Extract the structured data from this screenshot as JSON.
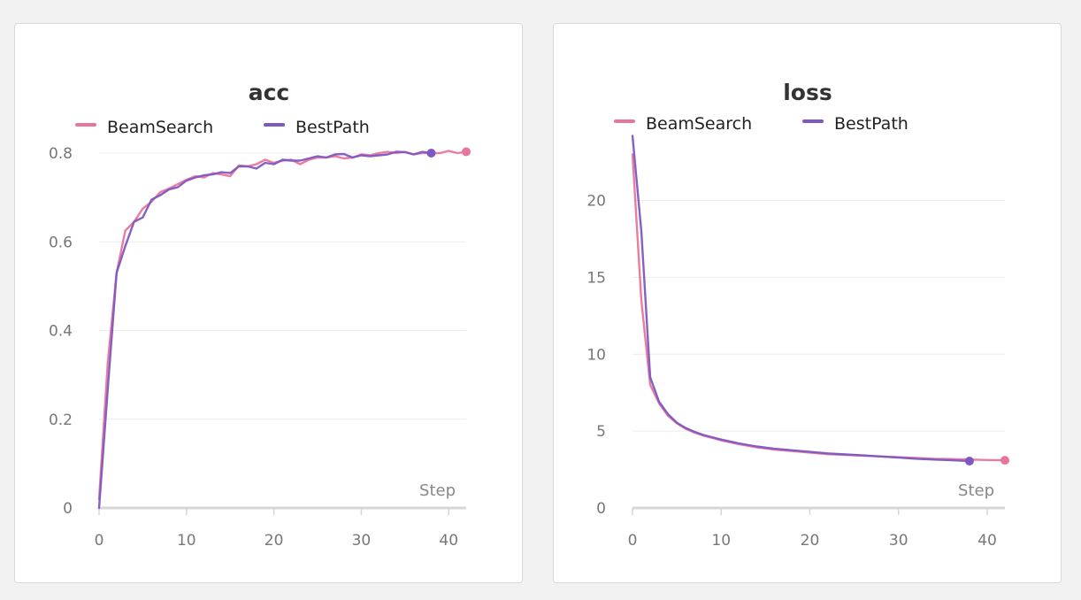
{
  "colors": {
    "BeamSearch": "#e8769a",
    "BestPath": "#7e57c2",
    "grid": "#ececec",
    "axis": "#d6d6d6"
  },
  "chart_data": [
    {
      "type": "line",
      "title": "acc",
      "xlabel": "Step",
      "ylabel": "",
      "xlim": [
        0,
        42
      ],
      "ylim": [
        0,
        0.8
      ],
      "xticks": [
        0,
        10,
        20,
        30,
        40
      ],
      "yticks": [
        0,
        0.2,
        0.4,
        0.6,
        0.8
      ],
      "grid": true,
      "legend": "top-left",
      "series": [
        {
          "name": "BeamSearch",
          "x": [
            0,
            1,
            2,
            3,
            4,
            5,
            6,
            7,
            8,
            9,
            10,
            11,
            12,
            13,
            14,
            15,
            16,
            17,
            18,
            19,
            20,
            21,
            22,
            23,
            24,
            25,
            26,
            27,
            28,
            29,
            30,
            31,
            32,
            33,
            34,
            35,
            36,
            37,
            38,
            39,
            40,
            41,
            42
          ],
          "y": [
            0.02,
            0.33,
            0.53,
            0.625,
            0.645,
            0.675,
            0.69,
            0.712,
            0.72,
            0.73,
            0.74,
            0.748,
            0.745,
            0.755,
            0.752,
            0.748,
            0.772,
            0.77,
            0.775,
            0.785,
            0.778,
            0.783,
            0.785,
            0.775,
            0.785,
            0.79,
            0.79,
            0.793,
            0.788,
            0.79,
            0.797,
            0.795,
            0.8,
            0.803,
            0.8,
            0.803,
            0.797,
            0.8,
            0.8,
            0.8,
            0.805,
            0.8,
            0.803
          ]
        },
        {
          "name": "BestPath",
          "x": [
            0,
            1,
            2,
            3,
            4,
            5,
            6,
            7,
            8,
            9,
            10,
            11,
            12,
            13,
            14,
            15,
            16,
            17,
            18,
            19,
            20,
            21,
            22,
            23,
            24,
            25,
            26,
            27,
            28,
            29,
            30,
            31,
            32,
            33,
            34,
            35,
            36,
            37,
            38
          ],
          "y": [
            0.0,
            0.27,
            0.53,
            0.59,
            0.645,
            0.655,
            0.695,
            0.705,
            0.718,
            0.723,
            0.738,
            0.745,
            0.75,
            0.752,
            0.757,
            0.755,
            0.77,
            0.77,
            0.765,
            0.778,
            0.775,
            0.785,
            0.783,
            0.783,
            0.788,
            0.793,
            0.79,
            0.797,
            0.798,
            0.79,
            0.795,
            0.793,
            0.795,
            0.797,
            0.803,
            0.802,
            0.797,
            0.803,
            0.8
          ]
        }
      ]
    },
    {
      "type": "line",
      "title": "loss",
      "xlabel": "Step",
      "ylabel": "",
      "xlim": [
        0,
        42
      ],
      "ylim": [
        0,
        24
      ],
      "xticks": [
        0,
        10,
        20,
        30,
        40
      ],
      "yticks": [
        0,
        5,
        10,
        15,
        20
      ],
      "grid": true,
      "legend": "top-left",
      "series": [
        {
          "name": "BeamSearch",
          "x": [
            0,
            1,
            2,
            3,
            4,
            5,
            6,
            7,
            8,
            9,
            10,
            12,
            14,
            16,
            18,
            20,
            22,
            24,
            26,
            28,
            30,
            32,
            34,
            36,
            38,
            40,
            42
          ],
          "y": [
            23.0,
            13.5,
            8.0,
            6.8,
            6.0,
            5.5,
            5.15,
            4.9,
            4.7,
            4.55,
            4.4,
            4.15,
            3.95,
            3.8,
            3.7,
            3.6,
            3.5,
            3.45,
            3.4,
            3.35,
            3.3,
            3.25,
            3.2,
            3.18,
            3.15,
            3.12,
            3.1
          ]
        },
        {
          "name": "BestPath",
          "x": [
            0,
            1,
            2,
            3,
            4,
            5,
            6,
            7,
            8,
            9,
            10,
            12,
            14,
            16,
            18,
            20,
            22,
            24,
            26,
            28,
            30,
            32,
            34,
            36,
            38
          ],
          "y": [
            24.2,
            18.0,
            8.5,
            6.9,
            6.1,
            5.55,
            5.2,
            4.95,
            4.75,
            4.6,
            4.45,
            4.2,
            4.0,
            3.85,
            3.75,
            3.65,
            3.55,
            3.48,
            3.42,
            3.35,
            3.28,
            3.2,
            3.15,
            3.1,
            3.05
          ]
        }
      ]
    }
  ]
}
